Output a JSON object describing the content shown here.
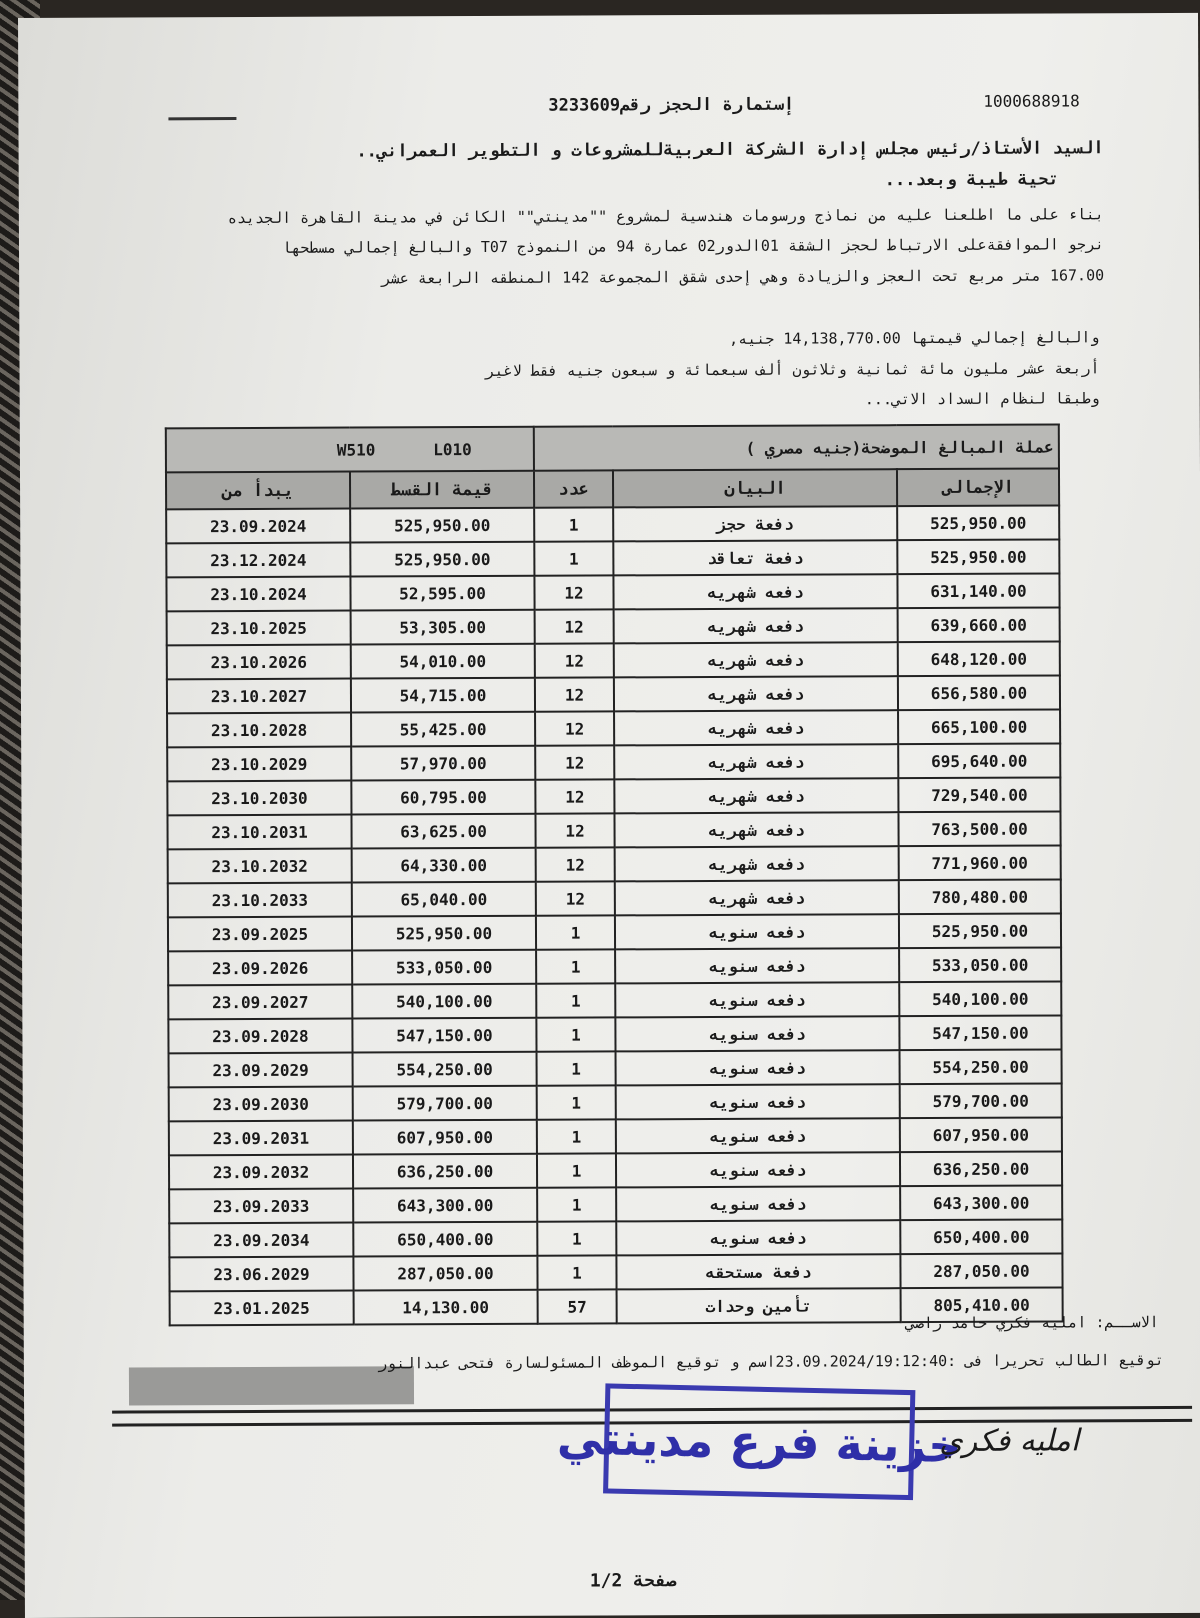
{
  "header": {
    "reference_number": "1000688918",
    "form_title": "إستمارة الحجز رقم3233609"
  },
  "letter": {
    "salutation": "السيد الأستاذ/رئيس مجلس إدارة الشركة العربيةللمشروعات و التطوير العمراني..",
    "greeting": "تحية طيبة وبعد...",
    "line1": "بناء على ما اطلعنا عليه من نماذج ورسومات هندسية لمشروع \"\"مدينتي\"\" الكائن في مدينة القاهرة الجديده",
    "line2": "نرجو الموافقةعلى الارتباط لحجز الشقة 01الدور02  عمارة  94  من النموذج T07  والبالغ إجمالي مسطحها",
    "line3": "167.00  متر مربع تحت العجز والزيادة وهي إحدى شقق المجموعة  142  المنطقه الرابعة عشر",
    "total_line": "والبالغ إجمالي قيمتها  14,138,770.00  جنيه,",
    "total_words": "أربعة عشر مليون مائة ثمانية وثلاثون ألف سبعمائة و سبعون  جنيه فقط لاغير",
    "plan_line": "وطبقا لنظام السداد الاتي..."
  },
  "table": {
    "currency_note": "عملة المبالغ الموضحة(جنيه مصري )",
    "codes": "W510      L010",
    "headers": {
      "start": "يبدأ من",
      "installment": "قيمة القسط",
      "count": "عدد",
      "description": "البيان",
      "total": "الإجمالى"
    },
    "rows": [
      {
        "start": "23.09.2024",
        "installment": "525,950.00",
        "count": "1",
        "description": "دفعة حجز",
        "total": "525,950.00"
      },
      {
        "start": "23.12.2024",
        "installment": "525,950.00",
        "count": "1",
        "description": "دفعة تعاقد",
        "total": "525,950.00"
      },
      {
        "start": "23.10.2024",
        "installment": "52,595.00",
        "count": "12",
        "description": "دفعه شهريه",
        "total": "631,140.00"
      },
      {
        "start": "23.10.2025",
        "installment": "53,305.00",
        "count": "12",
        "description": "دفعه شهريه",
        "total": "639,660.00"
      },
      {
        "start": "23.10.2026",
        "installment": "54,010.00",
        "count": "12",
        "description": "دفعه شهريه",
        "total": "648,120.00"
      },
      {
        "start": "23.10.2027",
        "installment": "54,715.00",
        "count": "12",
        "description": "دفعه شهريه",
        "total": "656,580.00"
      },
      {
        "start": "23.10.2028",
        "installment": "55,425.00",
        "count": "12",
        "description": "دفعه شهريه",
        "total": "665,100.00"
      },
      {
        "start": "23.10.2029",
        "installment": "57,970.00",
        "count": "12",
        "description": "دفعه شهريه",
        "total": "695,640.00"
      },
      {
        "start": "23.10.2030",
        "installment": "60,795.00",
        "count": "12",
        "description": "دفعه شهريه",
        "total": "729,540.00"
      },
      {
        "start": "23.10.2031",
        "installment": "63,625.00",
        "count": "12",
        "description": "دفعه شهريه",
        "total": "763,500.00"
      },
      {
        "start": "23.10.2032",
        "installment": "64,330.00",
        "count": "12",
        "description": "دفعه شهريه",
        "total": "771,960.00"
      },
      {
        "start": "23.10.2033",
        "installment": "65,040.00",
        "count": "12",
        "description": "دفعه شهريه",
        "total": "780,480.00"
      },
      {
        "start": "23.09.2025",
        "installment": "525,950.00",
        "count": "1",
        "description": "دفعه سنويه",
        "total": "525,950.00"
      },
      {
        "start": "23.09.2026",
        "installment": "533,050.00",
        "count": "1",
        "description": "دفعه سنويه",
        "total": "533,050.00"
      },
      {
        "start": "23.09.2027",
        "installment": "540,100.00",
        "count": "1",
        "description": "دفعه سنويه",
        "total": "540,100.00"
      },
      {
        "start": "23.09.2028",
        "installment": "547,150.00",
        "count": "1",
        "description": "دفعه سنويه",
        "total": "547,150.00"
      },
      {
        "start": "23.09.2029",
        "installment": "554,250.00",
        "count": "1",
        "description": "دفعه سنويه",
        "total": "554,250.00"
      },
      {
        "start": "23.09.2030",
        "installment": "579,700.00",
        "count": "1",
        "description": "دفعه سنويه",
        "total": "579,700.00"
      },
      {
        "start": "23.09.2031",
        "installment": "607,950.00",
        "count": "1",
        "description": "دفعه سنويه",
        "total": "607,950.00"
      },
      {
        "start": "23.09.2032",
        "installment": "636,250.00",
        "count": "1",
        "description": "دفعه سنويه",
        "total": "636,250.00"
      },
      {
        "start": "23.09.2033",
        "installment": "643,300.00",
        "count": "1",
        "description": "دفعه سنويه",
        "total": "643,300.00"
      },
      {
        "start": "23.09.2034",
        "installment": "650,400.00",
        "count": "1",
        "description": "دفعه سنويه",
        "total": "650,400.00"
      },
      {
        "start": "23.06.2029",
        "installment": "287,050.00",
        "count": "1",
        "description": "دفعة مستحقه",
        "total": "287,050.00"
      },
      {
        "start": "23.01.2025",
        "installment": "14,130.00",
        "count": "57",
        "description": "تأمين وحدات",
        "total": "805,410.00"
      }
    ]
  },
  "footer": {
    "name_line": "الاســم:  امليه فكري حامد راضي",
    "signature_line": "توقيع الطالب   تحريرا فى :23.09.2024/19:12:40اسم و توقيع الموظف المسئولسارة فتحى عبدالنور",
    "stamp_text": "خزينة فرع مدينتي",
    "handwritten_signature": "امليه فكري",
    "page_label": "صفحة 1/2"
  },
  "colors": {
    "stamp": "#2f2fa8",
    "header_fill": "#a9a9a6"
  }
}
